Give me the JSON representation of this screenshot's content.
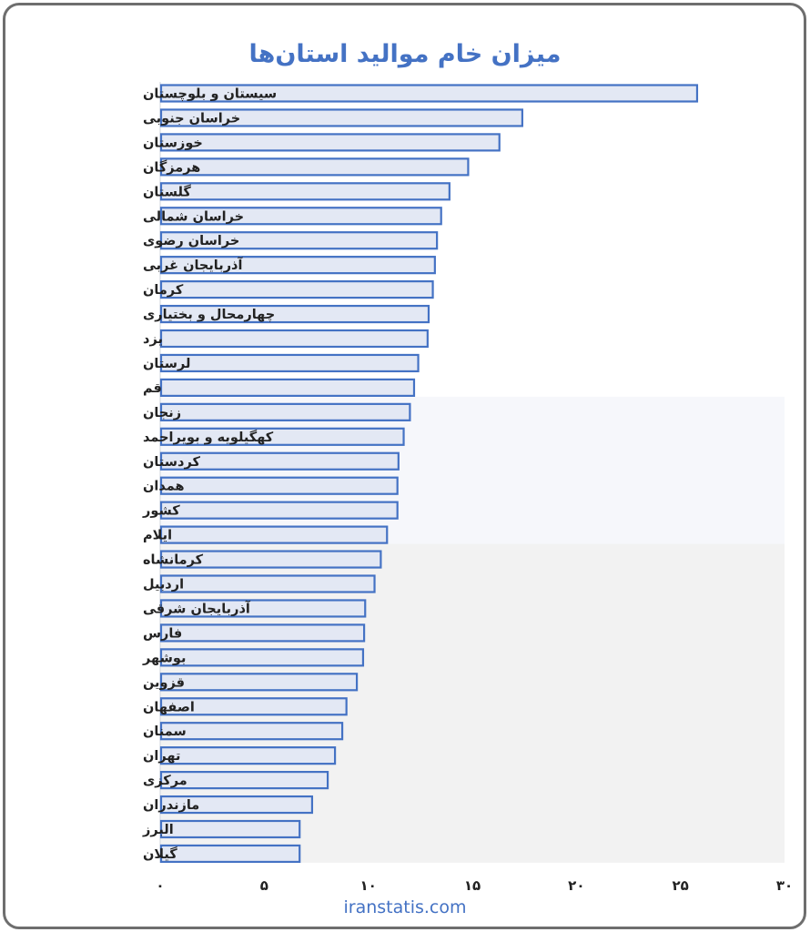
{
  "chart_data": {
    "type": "bar",
    "orientation": "horizontal",
    "title": "میزان خام موالید استان‌ها",
    "source": "iranstatis.com",
    "categories": [
      "سیستان و بلوچستان",
      "خراسان جنوبی",
      "خوزستان",
      "هرمزگان",
      "گلستان",
      "خراسان شمالی",
      "خراسان رضوی",
      "آذربایجان غربی",
      "کرمان",
      "چهارمحال و بختیاری",
      "یزد",
      "لرستان",
      "قم",
      "زنجان",
      "کهگیلویه و بویراحمد",
      "کردستان",
      "همدان",
      "کشور",
      "ایلام",
      "کرمانشاه",
      "اردبیل",
      "آذربایجان شرقی",
      "فارس",
      "بوشهر",
      "قزوین",
      "اصفهان",
      "سمنان",
      "تهران",
      "مرکزی",
      "مازندران",
      "البرز",
      "گیلان"
    ],
    "values": [
      25.8,
      17.4,
      16.3,
      14.8,
      13.9,
      13.5,
      13.3,
      13.2,
      13.1,
      12.9,
      12.85,
      12.4,
      12.2,
      12.0,
      11.7,
      11.45,
      11.4,
      11.4,
      10.9,
      10.6,
      10.3,
      9.85,
      9.8,
      9.75,
      9.45,
      8.95,
      8.75,
      8.4,
      8.05,
      7.3,
      6.7,
      6.7
    ],
    "xlim": [
      0,
      30
    ],
    "x_ticks": [
      "۰",
      "۵",
      "۱۰",
      "۱۵",
      "۲۰",
      "۲۵",
      "۳۰"
    ],
    "grid": false,
    "colors": {
      "bar_fill": "#e3e8f4",
      "bar_stroke": "#4472c4",
      "title": "#4472c4",
      "band_light": "#f6f7fb",
      "band_grey": "#f2f2f2"
    }
  }
}
